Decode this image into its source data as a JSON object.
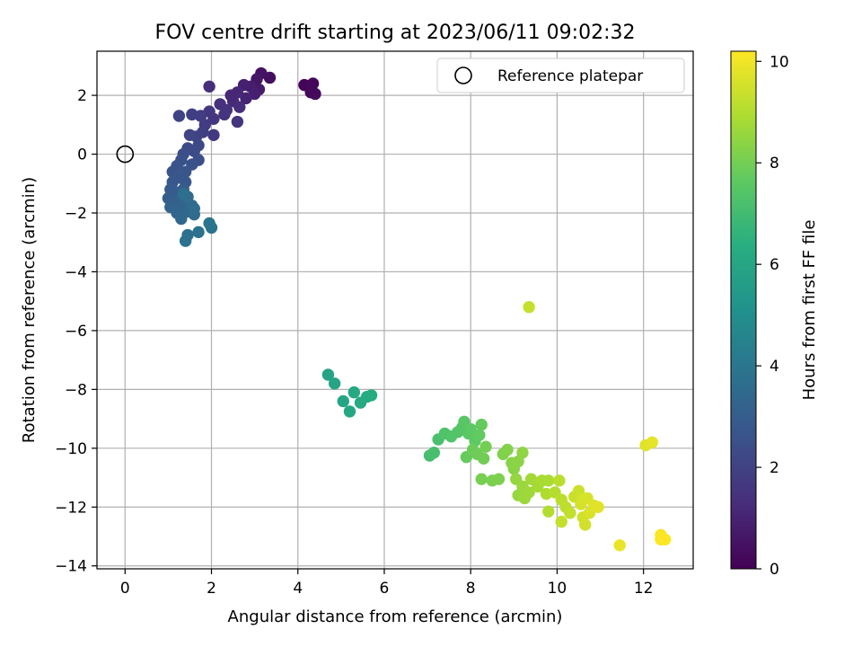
{
  "chart_data": {
    "type": "scatter",
    "title": "FOV centre drift starting at 2023/06/11 09:02:32",
    "xlabel": "Angular distance from reference (arcmin)",
    "ylabel": "Rotation from reference (arcmin)",
    "xlim": [
      -0.65,
      13.15
    ],
    "ylim": [
      -14.1,
      3.5
    ],
    "xticks": [
      0,
      2,
      4,
      6,
      8,
      10,
      12
    ],
    "yticks": [
      -14,
      -12,
      -10,
      -8,
      -6,
      -4,
      -2,
      0,
      2
    ],
    "grid": true,
    "legend": {
      "position": "top-right",
      "entries": [
        "Reference platepar"
      ]
    },
    "reference_point": {
      "x": 0,
      "y": 0
    },
    "colorbar": {
      "label": "Hours from first FF file",
      "range": [
        0,
        10.2
      ],
      "ticks": [
        0,
        2,
        4,
        6,
        8,
        10
      ],
      "colormap": "viridis"
    },
    "points": [
      {
        "x": 4.15,
        "y": 2.35,
        "c": 0.1
      },
      {
        "x": 4.35,
        "y": 2.4,
        "c": 0.15
      },
      {
        "x": 4.3,
        "y": 2.1,
        "c": 0.2
      },
      {
        "x": 4.4,
        "y": 2.05,
        "c": 0.25
      },
      {
        "x": 4.3,
        "y": 2.25,
        "c": 0.2
      },
      {
        "x": 3.35,
        "y": 2.6,
        "c": 0.4
      },
      {
        "x": 3.15,
        "y": 2.75,
        "c": 0.5
      },
      {
        "x": 3.05,
        "y": 2.55,
        "c": 0.6
      },
      {
        "x": 3.1,
        "y": 2.2,
        "c": 0.7
      },
      {
        "x": 2.9,
        "y": 2.3,
        "c": 0.8
      },
      {
        "x": 3.0,
        "y": 2.05,
        "c": 0.9
      },
      {
        "x": 2.8,
        "y": 1.9,
        "c": 1.0
      },
      {
        "x": 2.75,
        "y": 2.35,
        "c": 0.9
      },
      {
        "x": 2.6,
        "y": 2.1,
        "c": 1.1
      },
      {
        "x": 2.5,
        "y": 1.8,
        "c": 1.2
      },
      {
        "x": 2.45,
        "y": 2.0,
        "c": 1.1
      },
      {
        "x": 2.65,
        "y": 1.6,
        "c": 1.3
      },
      {
        "x": 2.35,
        "y": 1.5,
        "c": 1.4
      },
      {
        "x": 2.2,
        "y": 1.7,
        "c": 1.4
      },
      {
        "x": 2.3,
        "y": 1.35,
        "c": 1.5
      },
      {
        "x": 2.6,
        "y": 1.1,
        "c": 1.5
      },
      {
        "x": 2.05,
        "y": 1.2,
        "c": 1.6
      },
      {
        "x": 1.95,
        "y": 1.45,
        "c": 1.6
      },
      {
        "x": 1.95,
        "y": 2.3,
        "c": 1.3
      },
      {
        "x": 2.05,
        "y": 0.65,
        "c": 1.7
      },
      {
        "x": 1.75,
        "y": 1.3,
        "c": 1.8
      },
      {
        "x": 1.85,
        "y": 1.0,
        "c": 1.8
      },
      {
        "x": 1.8,
        "y": 0.75,
        "c": 1.9
      },
      {
        "x": 1.55,
        "y": 1.35,
        "c": 1.9
      },
      {
        "x": 1.25,
        "y": 1.3,
        "c": 2.0
      },
      {
        "x": 1.65,
        "y": 0.6,
        "c": 2.0
      },
      {
        "x": 1.5,
        "y": 0.65,
        "c": 2.1
      },
      {
        "x": 1.7,
        "y": 0.3,
        "c": 2.2
      },
      {
        "x": 1.6,
        "y": 0.1,
        "c": 2.3
      },
      {
        "x": 1.45,
        "y": 0.2,
        "c": 2.3
      },
      {
        "x": 1.7,
        "y": -0.2,
        "c": 2.4
      },
      {
        "x": 1.35,
        "y": 0.0,
        "c": 2.4
      },
      {
        "x": 1.55,
        "y": -0.35,
        "c": 2.5
      },
      {
        "x": 1.3,
        "y": -0.2,
        "c": 2.5
      },
      {
        "x": 1.2,
        "y": -0.4,
        "c": 2.6
      },
      {
        "x": 1.1,
        "y": -0.6,
        "c": 2.6
      },
      {
        "x": 1.4,
        "y": -0.6,
        "c": 2.7
      },
      {
        "x": 1.25,
        "y": -0.8,
        "c": 2.7
      },
      {
        "x": 1.1,
        "y": -0.95,
        "c": 2.8
      },
      {
        "x": 1.4,
        "y": -0.95,
        "c": 2.8
      },
      {
        "x": 1.05,
        "y": -1.2,
        "c": 2.9
      },
      {
        "x": 1.2,
        "y": -1.3,
        "c": 2.9
      },
      {
        "x": 1.0,
        "y": -1.5,
        "c": 3.0
      },
      {
        "x": 1.35,
        "y": -1.2,
        "c": 3.0
      },
      {
        "x": 1.15,
        "y": -1.6,
        "c": 3.1
      },
      {
        "x": 1.05,
        "y": -1.8,
        "c": 3.2
      },
      {
        "x": 1.25,
        "y": -1.75,
        "c": 3.2
      },
      {
        "x": 1.4,
        "y": -1.6,
        "c": 3.3
      },
      {
        "x": 1.2,
        "y": -2.0,
        "c": 3.3
      },
      {
        "x": 1.3,
        "y": -2.2,
        "c": 3.4
      },
      {
        "x": 1.45,
        "y": -1.95,
        "c": 3.4
      },
      {
        "x": 1.55,
        "y": -1.75,
        "c": 3.5
      },
      {
        "x": 1.6,
        "y": -2.05,
        "c": 3.5
      },
      {
        "x": 1.6,
        "y": -1.85,
        "c": 3.6
      },
      {
        "x": 1.45,
        "y": -1.45,
        "c": 3.6
      },
      {
        "x": 1.35,
        "y": -1.35,
        "c": 3.7
      },
      {
        "x": 1.45,
        "y": -2.75,
        "c": 3.7
      },
      {
        "x": 1.4,
        "y": -2.95,
        "c": 3.8
      },
      {
        "x": 1.7,
        "y": -2.65,
        "c": 3.8
      },
      {
        "x": 1.95,
        "y": -2.35,
        "c": 3.9
      },
      {
        "x": 2.0,
        "y": -2.5,
        "c": 3.9
      },
      {
        "x": 4.7,
        "y": -7.5,
        "c": 5.9
      },
      {
        "x": 4.85,
        "y": -7.8,
        "c": 5.95
      },
      {
        "x": 5.05,
        "y": -8.4,
        "c": 6.0
      },
      {
        "x": 5.2,
        "y": -8.75,
        "c": 6.05
      },
      {
        "x": 5.3,
        "y": -8.1,
        "c": 6.1
      },
      {
        "x": 5.45,
        "y": -8.45,
        "c": 6.15
      },
      {
        "x": 5.6,
        "y": -8.25,
        "c": 6.2
      },
      {
        "x": 5.7,
        "y": -8.2,
        "c": 6.25
      },
      {
        "x": 7.05,
        "y": -10.25,
        "c": 7.1
      },
      {
        "x": 7.15,
        "y": -10.15,
        "c": 7.15
      },
      {
        "x": 7.25,
        "y": -9.7,
        "c": 7.2
      },
      {
        "x": 7.4,
        "y": -9.5,
        "c": 7.3
      },
      {
        "x": 7.55,
        "y": -9.6,
        "c": 7.35
      },
      {
        "x": 7.7,
        "y": -9.45,
        "c": 7.4
      },
      {
        "x": 7.8,
        "y": -9.3,
        "c": 7.45
      },
      {
        "x": 7.85,
        "y": -9.1,
        "c": 7.5
      },
      {
        "x": 7.95,
        "y": -9.5,
        "c": 7.55
      },
      {
        "x": 8.0,
        "y": -9.35,
        "c": 7.6
      },
      {
        "x": 8.1,
        "y": -9.75,
        "c": 7.65
      },
      {
        "x": 8.2,
        "y": -9.55,
        "c": 7.7
      },
      {
        "x": 8.25,
        "y": -9.2,
        "c": 7.75
      },
      {
        "x": 7.9,
        "y": -10.3,
        "c": 7.8
      },
      {
        "x": 8.05,
        "y": -10.05,
        "c": 7.85
      },
      {
        "x": 8.15,
        "y": -10.2,
        "c": 7.9
      },
      {
        "x": 8.3,
        "y": -10.35,
        "c": 7.95
      },
      {
        "x": 8.35,
        "y": -9.95,
        "c": 8.0
      },
      {
        "x": 8.25,
        "y": -11.05,
        "c": 8.05
      },
      {
        "x": 8.5,
        "y": -11.1,
        "c": 8.1
      },
      {
        "x": 8.65,
        "y": -11.05,
        "c": 8.15
      },
      {
        "x": 8.75,
        "y": -10.2,
        "c": 8.2
      },
      {
        "x": 8.85,
        "y": -10.05,
        "c": 8.25
      },
      {
        "x": 8.95,
        "y": -10.5,
        "c": 8.3
      },
      {
        "x": 9.0,
        "y": -10.7,
        "c": 8.35
      },
      {
        "x": 9.1,
        "y": -10.45,
        "c": 8.4
      },
      {
        "x": 9.2,
        "y": -10.15,
        "c": 8.45
      },
      {
        "x": 9.05,
        "y": -11.05,
        "c": 8.5
      },
      {
        "x": 9.1,
        "y": -11.6,
        "c": 8.55
      },
      {
        "x": 9.2,
        "y": -11.3,
        "c": 8.6
      },
      {
        "x": 9.25,
        "y": -11.7,
        "c": 8.65
      },
      {
        "x": 9.35,
        "y": -11.5,
        "c": 8.7
      },
      {
        "x": 9.4,
        "y": -11.05,
        "c": 8.75
      },
      {
        "x": 9.55,
        "y": -11.3,
        "c": 8.8
      },
      {
        "x": 9.65,
        "y": -11.1,
        "c": 8.85
      },
      {
        "x": 9.8,
        "y": -11.1,
        "c": 8.9
      },
      {
        "x": 9.75,
        "y": -11.55,
        "c": 8.95
      },
      {
        "x": 9.8,
        "y": -12.15,
        "c": 9.0
      },
      {
        "x": 9.95,
        "y": -11.5,
        "c": 9.05
      },
      {
        "x": 10.05,
        "y": -11.1,
        "c": 9.1
      },
      {
        "x": 10.1,
        "y": -11.75,
        "c": 9.15
      },
      {
        "x": 10.2,
        "y": -12.0,
        "c": 9.2
      },
      {
        "x": 10.3,
        "y": -12.2,
        "c": 9.25
      },
      {
        "x": 10.1,
        "y": -12.5,
        "c": 9.3
      },
      {
        "x": 10.4,
        "y": -11.65,
        "c": 9.35
      },
      {
        "x": 10.5,
        "y": -11.45,
        "c": 9.4
      },
      {
        "x": 10.6,
        "y": -12.35,
        "c": 9.45
      },
      {
        "x": 10.65,
        "y": -12.6,
        "c": 9.5
      },
      {
        "x": 10.55,
        "y": -11.9,
        "c": 9.55
      },
      {
        "x": 10.7,
        "y": -11.7,
        "c": 9.6
      },
      {
        "x": 10.75,
        "y": -12.2,
        "c": 9.65
      },
      {
        "x": 10.85,
        "y": -11.95,
        "c": 9.7
      },
      {
        "x": 10.95,
        "y": -12.0,
        "c": 9.75
      },
      {
        "x": 10.6,
        "y": -11.75,
        "c": 9.6
      },
      {
        "x": 9.35,
        "y": -5.2,
        "c": 9.3
      },
      {
        "x": 12.05,
        "y": -9.9,
        "c": 9.75
      },
      {
        "x": 12.2,
        "y": -9.8,
        "c": 9.8
      },
      {
        "x": 11.45,
        "y": -13.3,
        "c": 9.9
      },
      {
        "x": 12.4,
        "y": -12.95,
        "c": 10.1
      },
      {
        "x": 12.4,
        "y": -13.1,
        "c": 10.15
      },
      {
        "x": 12.5,
        "y": -13.1,
        "c": 10.2
      }
    ]
  }
}
